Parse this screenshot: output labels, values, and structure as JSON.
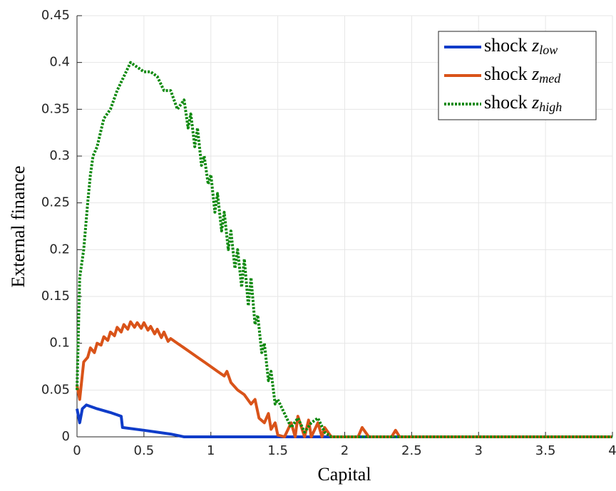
{
  "chart_data": {
    "type": "line",
    "xlabel": "Capital",
    "ylabel": "External finance",
    "xlim": [
      0,
      4
    ],
    "xticks": [
      0,
      0.5,
      1,
      1.5,
      2,
      2.5,
      3,
      3.5,
      4
    ],
    "ylim": [
      0,
      0.45
    ],
    "yticks": [
      0,
      0.05,
      0.1,
      0.15,
      0.2,
      0.25,
      0.3,
      0.35,
      0.4,
      0.45
    ],
    "grid": true,
    "legend_position": "top-right",
    "series": [
      {
        "name": "shock z_low",
        "color": "#0f3cc9",
        "dash": "solid",
        "x": [
          0,
          0.02,
          0.04,
          0.07,
          0.15,
          0.25,
          0.33,
          0.34,
          0.5,
          0.7,
          0.8,
          1,
          2,
          3,
          4
        ],
        "values": [
          0.03,
          0.015,
          0.03,
          0.034,
          0.03,
          0.026,
          0.022,
          0.01,
          0.007,
          0.003,
          0,
          0,
          0,
          0,
          0
        ]
      },
      {
        "name": "shock z_med",
        "color": "#d95319",
        "dash": "solid",
        "x": [
          0,
          0.02,
          0.05,
          0.08,
          0.1,
          0.13,
          0.15,
          0.18,
          0.2,
          0.23,
          0.25,
          0.28,
          0.3,
          0.33,
          0.35,
          0.38,
          0.4,
          0.43,
          0.45,
          0.48,
          0.5,
          0.53,
          0.55,
          0.58,
          0.6,
          0.63,
          0.65,
          0.68,
          0.7,
          0.75,
          0.8,
          0.85,
          0.9,
          0.95,
          1.0,
          1.05,
          1.1,
          1.12,
          1.15,
          1.2,
          1.25,
          1.3,
          1.33,
          1.36,
          1.4,
          1.43,
          1.45,
          1.48,
          1.5,
          1.55,
          1.6,
          1.63,
          1.65,
          1.7,
          1.73,
          1.75,
          1.8,
          1.83,
          1.85,
          1.9,
          2.1,
          2.13,
          2.18,
          2.35,
          2.38,
          2.41,
          4
        ],
        "values": [
          0.055,
          0.04,
          0.08,
          0.085,
          0.095,
          0.09,
          0.1,
          0.098,
          0.107,
          0.103,
          0.112,
          0.108,
          0.117,
          0.112,
          0.12,
          0.115,
          0.123,
          0.117,
          0.122,
          0.116,
          0.122,
          0.114,
          0.118,
          0.11,
          0.115,
          0.106,
          0.112,
          0.102,
          0.105,
          0.1,
          0.095,
          0.09,
          0.085,
          0.08,
          0.075,
          0.07,
          0.065,
          0.07,
          0.058,
          0.05,
          0.045,
          0.035,
          0.04,
          0.02,
          0.015,
          0.025,
          0.008,
          0.015,
          0.002,
          0,
          0.015,
          0,
          0.022,
          0,
          0.018,
          0,
          0.015,
          0,
          0.01,
          0,
          0,
          0.01,
          0,
          0,
          0.007,
          0,
          0
        ]
      },
      {
        "name": "shock z_high",
        "color": "#108a10",
        "dash": "dotted",
        "x": [
          0,
          0.02,
          0.05,
          0.08,
          0.1,
          0.12,
          0.15,
          0.2,
          0.25,
          0.3,
          0.35,
          0.4,
          0.45,
          0.5,
          0.55,
          0.6,
          0.65,
          0.7,
          0.75,
          0.8,
          0.83,
          0.85,
          0.88,
          0.9,
          0.93,
          0.95,
          0.98,
          1.0,
          1.03,
          1.05,
          1.08,
          1.1,
          1.13,
          1.15,
          1.18,
          1.2,
          1.23,
          1.25,
          1.28,
          1.3,
          1.33,
          1.35,
          1.38,
          1.4,
          1.43,
          1.45,
          1.48,
          1.5,
          1.55,
          1.6,
          1.65,
          1.7,
          1.75,
          1.8,
          1.85,
          1.9,
          4
        ],
        "values": [
          0.05,
          0.17,
          0.2,
          0.25,
          0.28,
          0.3,
          0.31,
          0.34,
          0.35,
          0.37,
          0.385,
          0.4,
          0.395,
          0.39,
          0.39,
          0.385,
          0.37,
          0.37,
          0.35,
          0.36,
          0.33,
          0.345,
          0.31,
          0.33,
          0.29,
          0.3,
          0.27,
          0.28,
          0.24,
          0.26,
          0.22,
          0.24,
          0.2,
          0.22,
          0.18,
          0.2,
          0.16,
          0.19,
          0.14,
          0.17,
          0.12,
          0.13,
          0.09,
          0.1,
          0.06,
          0.07,
          0.035,
          0.04,
          0.025,
          0.01,
          0.02,
          0.005,
          0.015,
          0.02,
          0.005,
          0,
          0
        ]
      }
    ]
  }
}
